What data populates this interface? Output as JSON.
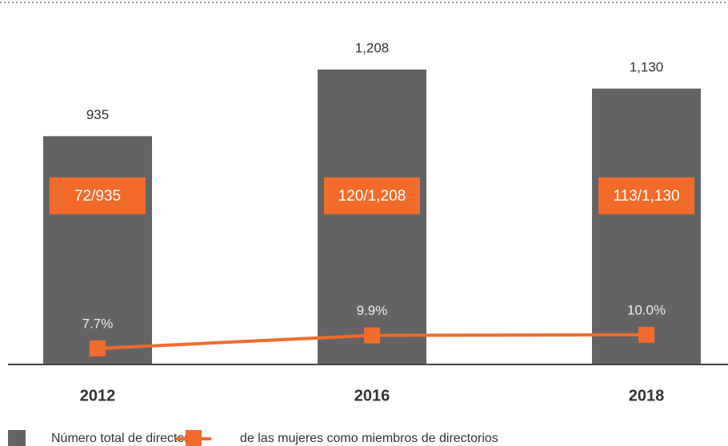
{
  "chart_data": {
    "type": "bar-line",
    "categories": [
      "2012",
      "2016",
      "2018"
    ],
    "series": [
      {
        "name": "Número total de directores",
        "color": "#636363",
        "type": "bar",
        "values": [
          935,
          1208,
          1130
        ],
        "value_labels": [
          "935",
          "1,208",
          "1,130"
        ]
      },
      {
        "name": "de las mujeres como miembros de directorios",
        "color": "#f26b2b",
        "type": "line",
        "axis": "y2",
        "values": [
          7.7,
          9.9,
          10.0
        ],
        "value_labels": [
          "7.7%",
          "9.9%",
          "10.0%"
        ]
      }
    ],
    "annotations": [
      "72/935",
      "120/1,208",
      "113/1,130"
    ],
    "ylim": [
      0,
      1460
    ],
    "y2lim": [
      5,
      65
    ]
  }
}
